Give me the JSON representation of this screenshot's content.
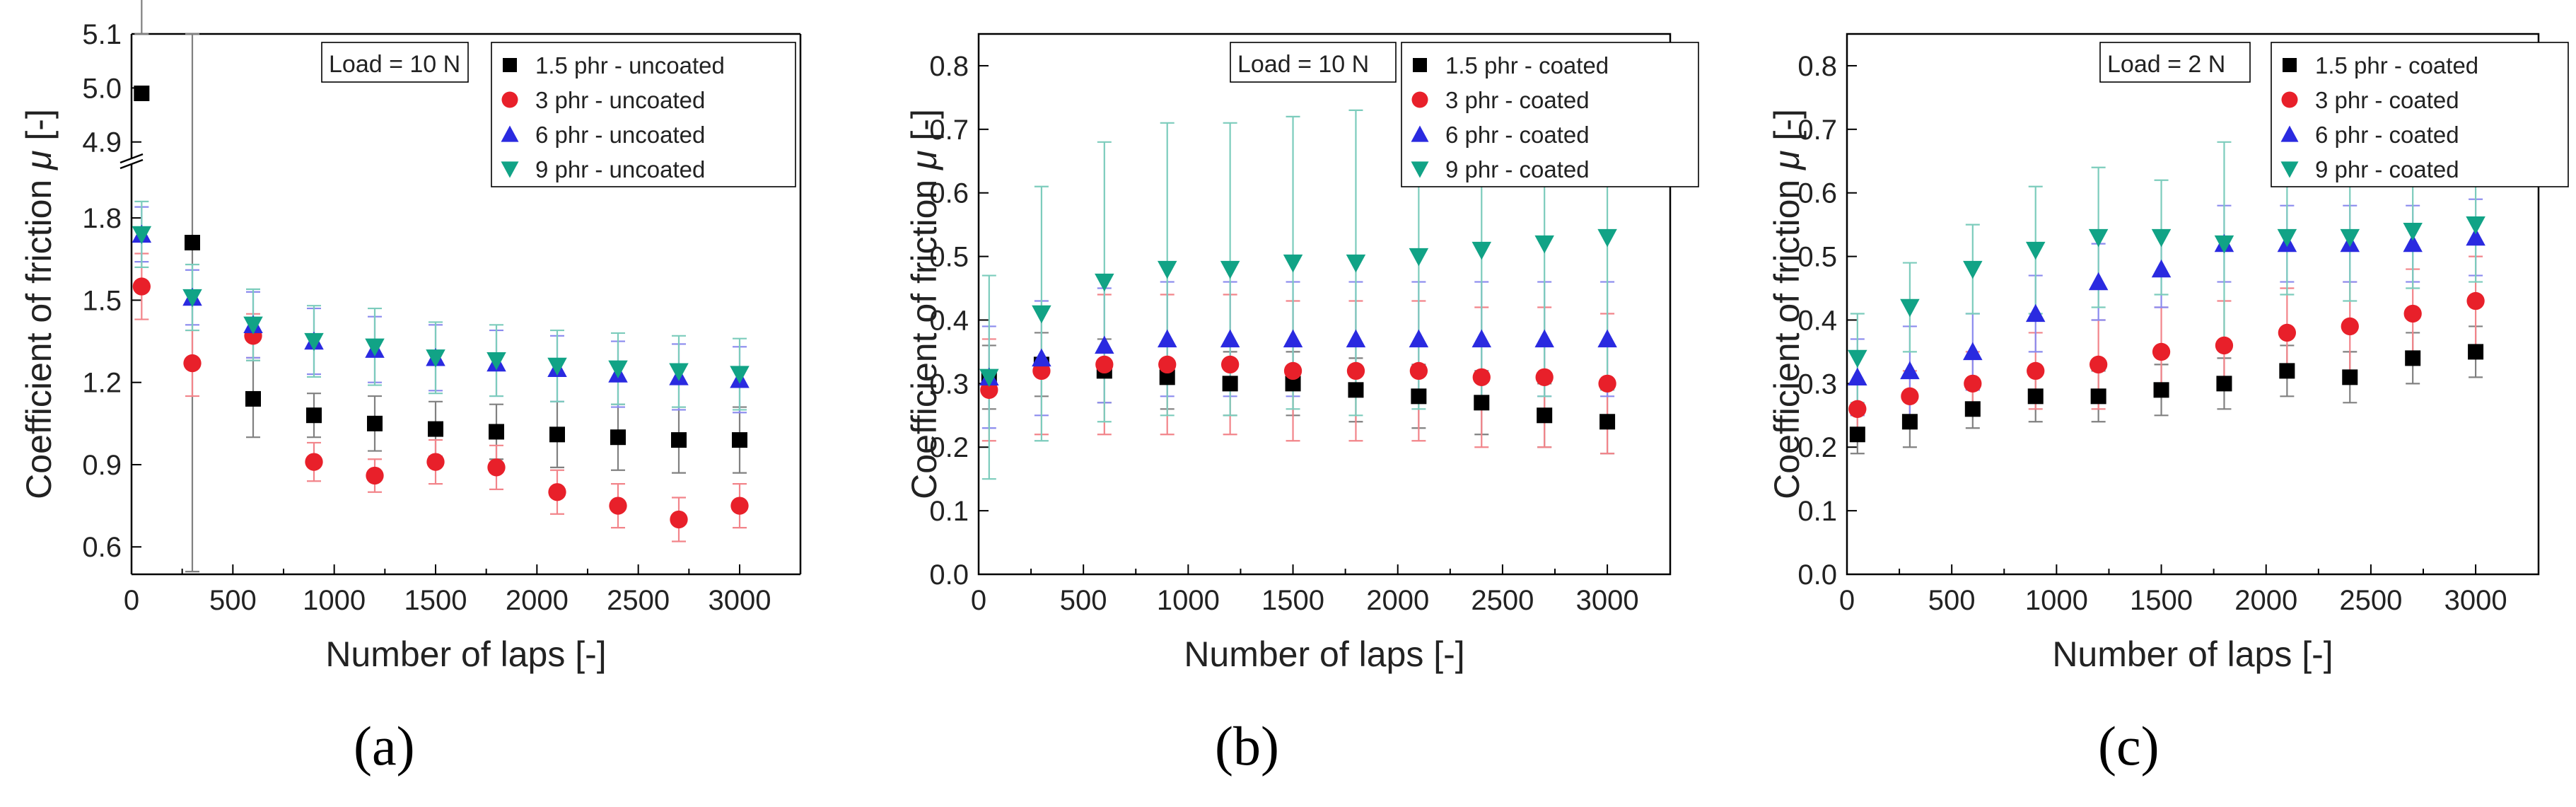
{
  "figure": {
    "panel_labels": [
      "(a)",
      "(b)",
      "(c)"
    ]
  },
  "chart_data": [
    {
      "type": "scatter",
      "panel": "(a)",
      "xlabel": "Number of laps [-]",
      "ylabel": "Coefficient of friction μ [-]",
      "annotation": "Load = 10 N",
      "legend_position": "top-right",
      "xlim": [
        0,
        3300
      ],
      "xticks": [
        0,
        500,
        1000,
        1500,
        2000,
        2500,
        3000
      ],
      "broken_axis": true,
      "ylim_lower": [
        0.5,
        1.95
      ],
      "ylim_upper": [
        4.88,
        5.1
      ],
      "yticks_lower": [
        0.6,
        0.9,
        1.2,
        1.5,
        1.8
      ],
      "yticks_upper": [
        4.9,
        5.0,
        5.1
      ],
      "x": [
        50,
        300,
        600,
        900,
        1200,
        1500,
        1800,
        2100,
        2400,
        2700,
        3000
      ],
      "series": [
        {
          "name": "1.5 phr - uncoated",
          "color": "#000000",
          "marker": "square",
          "values": [
            4.99,
            1.71,
            1.14,
            1.08,
            1.05,
            1.03,
            1.02,
            1.01,
            1.0,
            0.99,
            0.99
          ],
          "errors": [
            0.18,
            1.2,
            0.14,
            0.08,
            0.1,
            0.1,
            0.1,
            0.12,
            0.12,
            0.12,
            0.12
          ]
        },
        {
          "name": "3 phr - uncoated",
          "color": "#e8202a",
          "marker": "circle",
          "values": [
            1.55,
            1.27,
            1.37,
            0.91,
            0.86,
            0.91,
            0.89,
            0.8,
            0.75,
            0.7,
            0.75
          ],
          "errors": [
            0.12,
            0.12,
            0.08,
            0.07,
            0.06,
            0.08,
            0.08,
            0.08,
            0.08,
            0.08,
            0.08
          ]
        },
        {
          "name": "6 phr - uncoated",
          "color": "#2a2ae0",
          "marker": "triangle-up",
          "values": [
            1.74,
            1.51,
            1.41,
            1.35,
            1.32,
            1.29,
            1.27,
            1.25,
            1.23,
            1.22,
            1.21
          ],
          "errors": [
            0.1,
            0.1,
            0.12,
            0.12,
            0.12,
            0.12,
            0.12,
            0.12,
            0.12,
            0.12,
            0.12
          ]
        },
        {
          "name": "9 phr - uncoated",
          "color": "#11a386",
          "marker": "triangle-down",
          "values": [
            1.74,
            1.51,
            1.41,
            1.35,
            1.33,
            1.29,
            1.28,
            1.26,
            1.25,
            1.24,
            1.23
          ],
          "errors": [
            0.12,
            0.12,
            0.13,
            0.13,
            0.14,
            0.13,
            0.13,
            0.13,
            0.13,
            0.13,
            0.13
          ]
        }
      ]
    },
    {
      "type": "scatter",
      "panel": "(b)",
      "xlabel": "Number of laps [-]",
      "ylabel": "Coefficient of friction μ [-]",
      "annotation": "Load = 10 N",
      "legend_position": "top-right",
      "xlim": [
        0,
        3300
      ],
      "ylim": [
        0,
        0.85
      ],
      "xticks": [
        0,
        500,
        1000,
        1500,
        2000,
        2500,
        3000
      ],
      "yticks": [
        0.0,
        0.1,
        0.2,
        0.3,
        0.4,
        0.5,
        0.6,
        0.7,
        0.8
      ],
      "x": [
        50,
        300,
        600,
        900,
        1200,
        1500,
        1800,
        2100,
        2400,
        2700,
        3000
      ],
      "series": [
        {
          "name": "1.5 phr - coated",
          "color": "#000000",
          "marker": "square",
          "values": [
            0.31,
            0.33,
            0.32,
            0.31,
            0.3,
            0.3,
            0.29,
            0.28,
            0.27,
            0.25,
            0.24
          ],
          "errors": [
            0.05,
            0.05,
            0.05,
            0.05,
            0.05,
            0.05,
            0.05,
            0.05,
            0.05,
            0.05,
            0.05
          ]
        },
        {
          "name": "3 phr - coated",
          "color": "#e8202a",
          "marker": "circle",
          "values": [
            0.29,
            0.32,
            0.33,
            0.33,
            0.33,
            0.32,
            0.32,
            0.32,
            0.31,
            0.31,
            0.3
          ],
          "errors": [
            0.08,
            0.1,
            0.11,
            0.11,
            0.11,
            0.11,
            0.11,
            0.11,
            0.11,
            0.11,
            0.11
          ]
        },
        {
          "name": "6 phr - coated",
          "color": "#2a2ae0",
          "marker": "triangle-up",
          "values": [
            0.31,
            0.34,
            0.36,
            0.37,
            0.37,
            0.37,
            0.37,
            0.37,
            0.37,
            0.37,
            0.37
          ],
          "errors": [
            0.08,
            0.09,
            0.09,
            0.09,
            0.09,
            0.09,
            0.09,
            0.09,
            0.09,
            0.09,
            0.09
          ]
        },
        {
          "name": "9 phr - coated",
          "color": "#11a386",
          "marker": "triangle-down",
          "values": [
            0.31,
            0.41,
            0.46,
            0.48,
            0.48,
            0.49,
            0.49,
            0.5,
            0.51,
            0.52,
            0.53
          ],
          "errors": [
            0.16,
            0.2,
            0.22,
            0.23,
            0.23,
            0.23,
            0.24,
            0.24,
            0.24,
            0.24,
            0.24
          ]
        }
      ]
    },
    {
      "type": "scatter",
      "panel": "(c)",
      "xlabel": "Number of laps [-]",
      "ylabel": "Coefficient of friction μ [-]",
      "annotation": "Load = 2 N",
      "legend_position": "top-right",
      "xlim": [
        0,
        3300
      ],
      "ylim": [
        0,
        0.85
      ],
      "xticks": [
        0,
        500,
        1000,
        1500,
        2000,
        2500,
        3000
      ],
      "yticks": [
        0.0,
        0.1,
        0.2,
        0.3,
        0.4,
        0.5,
        0.6,
        0.7,
        0.8
      ],
      "x": [
        50,
        300,
        600,
        900,
        1200,
        1500,
        1800,
        2100,
        2400,
        2700,
        3000
      ],
      "series": [
        {
          "name": "1.5 phr - coated",
          "color": "#000000",
          "marker": "square",
          "values": [
            0.22,
            0.24,
            0.26,
            0.28,
            0.28,
            0.29,
            0.3,
            0.32,
            0.31,
            0.34,
            0.35
          ],
          "errors": [
            0.03,
            0.04,
            0.03,
            0.04,
            0.04,
            0.04,
            0.04,
            0.04,
            0.04,
            0.04,
            0.04
          ]
        },
        {
          "name": "3 phr - coated",
          "color": "#e8202a",
          "marker": "circle",
          "values": [
            0.26,
            0.28,
            0.3,
            0.32,
            0.33,
            0.35,
            0.36,
            0.38,
            0.39,
            0.41,
            0.43
          ],
          "errors": [
            0.04,
            0.04,
            0.05,
            0.06,
            0.07,
            0.07,
            0.07,
            0.07,
            0.07,
            0.07,
            0.07
          ]
        },
        {
          "name": "6 phr - coated",
          "color": "#2a2ae0",
          "marker": "triangle-up",
          "values": [
            0.31,
            0.32,
            0.35,
            0.41,
            0.46,
            0.48,
            0.52,
            0.52,
            0.52,
            0.52,
            0.53
          ],
          "errors": [
            0.06,
            0.07,
            0.06,
            0.06,
            0.06,
            0.06,
            0.06,
            0.06,
            0.06,
            0.06,
            0.06
          ]
        },
        {
          "name": "9 phr - coated",
          "color": "#11a386",
          "marker": "triangle-down",
          "values": [
            0.34,
            0.42,
            0.48,
            0.51,
            0.53,
            0.53,
            0.52,
            0.53,
            0.53,
            0.54,
            0.55
          ],
          "errors": [
            0.07,
            0.07,
            0.07,
            0.1,
            0.11,
            0.09,
            0.16,
            0.09,
            0.1,
            0.09,
            0.09
          ]
        }
      ]
    }
  ]
}
